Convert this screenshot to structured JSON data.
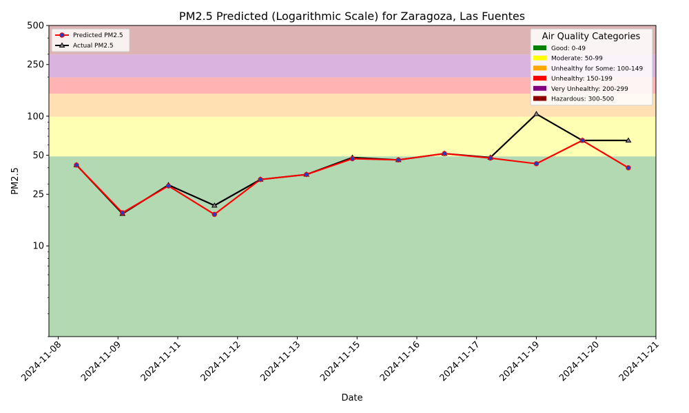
{
  "chart_data": {
    "type": "line",
    "title": "PM2.5 Predicted (Logarithmic Scale) for Zaragoza, Las Fuentes",
    "xlabel": "Date",
    "ylabel": "PM2.5",
    "yscale": "log",
    "ylim": [
      2,
      500
    ],
    "y_ticks": [
      {
        "value": 10,
        "label": "10"
      },
      {
        "value": 25,
        "label": "25"
      },
      {
        "value": 50,
        "label": "50"
      },
      {
        "value": 100,
        "label": "100"
      },
      {
        "value": 250,
        "label": "250"
      },
      {
        "value": 500,
        "label": "500"
      }
    ],
    "x_ticks": [
      "2024-11-08",
      "2024-11-09",
      "2024-11-11",
      "2024-11-12",
      "2024-11-13",
      "2024-11-15",
      "2024-11-16",
      "2024-11-17",
      "2024-11-19",
      "2024-11-20",
      "2024-11-21"
    ],
    "x_points": [
      "2024-11-08",
      "2024-11-09",
      "2024-11-10",
      "2024-11-11",
      "2024-11-12",
      "2024-11-13",
      "2024-11-14",
      "2024-11-15",
      "2024-11-16",
      "2024-11-17",
      "2024-11-18",
      "2024-11-19",
      "2024-11-20"
    ],
    "series": [
      {
        "name": "Predicted PM2.5",
        "color": "#ff0000",
        "marker_color": "#1f3fbf",
        "marker": "circle",
        "values": [
          42,
          18,
          29,
          17.5,
          32.5,
          35.5,
          47,
          46,
          51.5,
          47.5,
          43,
          65,
          40
        ]
      },
      {
        "name": "Actual PM2.5",
        "color": "#000000",
        "marker": "triangle",
        "values": [
          42,
          17.7,
          29.5,
          20.5,
          32.5,
          35.5,
          48,
          46,
          51.5,
          48,
          104,
          65,
          65
        ]
      }
    ],
    "bands": [
      {
        "from": 0,
        "to": 49,
        "color": "#b3d9b3"
      },
      {
        "from": 49,
        "to": 99,
        "color": "#ffffb3"
      },
      {
        "from": 99,
        "to": 149,
        "color": "#ffe0b3"
      },
      {
        "from": 149,
        "to": 199,
        "color": "#ffb3b3"
      },
      {
        "from": 199,
        "to": 299,
        "color": "#dbb3df"
      },
      {
        "from": 299,
        "to": 500,
        "color": "#deb3b3"
      }
    ],
    "legend_series": {
      "placement": "top-left"
    },
    "legend_categories": {
      "title": "Air Quality Categories",
      "placement": "top-right",
      "items": [
        {
          "label": "Good: 0-49",
          "color": "#008000"
        },
        {
          "label": "Moderate: 50-99",
          "color": "#ffff00"
        },
        {
          "label": "Unhealthy for Some: 100-149",
          "color": "#ffa500"
        },
        {
          "label": "Unhealthy: 150-199",
          "color": "#ff0000"
        },
        {
          "label": "Very Unhealthy: 200-299",
          "color": "#800080"
        },
        {
          "label": "Hazardous: 300-500",
          "color": "#8b0000"
        }
      ]
    }
  }
}
